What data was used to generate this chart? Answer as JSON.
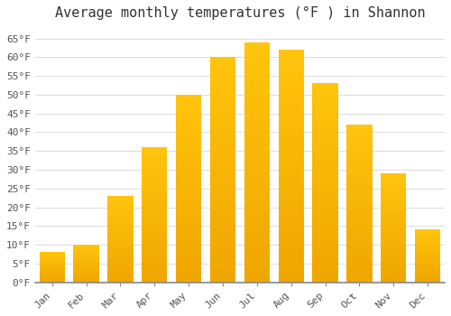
{
  "title": "Average monthly temperatures (°F ) in Shannon",
  "months": [
    "Jan",
    "Feb",
    "Mar",
    "Apr",
    "May",
    "Jun",
    "Jul",
    "Aug",
    "Sep",
    "Oct",
    "Nov",
    "Dec"
  ],
  "values": [
    8,
    10,
    23,
    36,
    50,
    60,
    64,
    62,
    53,
    42,
    29,
    14
  ],
  "bar_color": "#FFC020",
  "bar_edge_color": "#F5A800",
  "background_color": "#FFFFFF",
  "plot_bg_color": "#FFFFFF",
  "grid_color": "#DDDDDD",
  "ylim": [
    0,
    68
  ],
  "yticks": [
    0,
    5,
    10,
    15,
    20,
    25,
    30,
    35,
    40,
    45,
    50,
    55,
    60,
    65
  ],
  "title_fontsize": 11,
  "tick_fontsize": 8,
  "font_family": "monospace",
  "axis_color": "#888888"
}
